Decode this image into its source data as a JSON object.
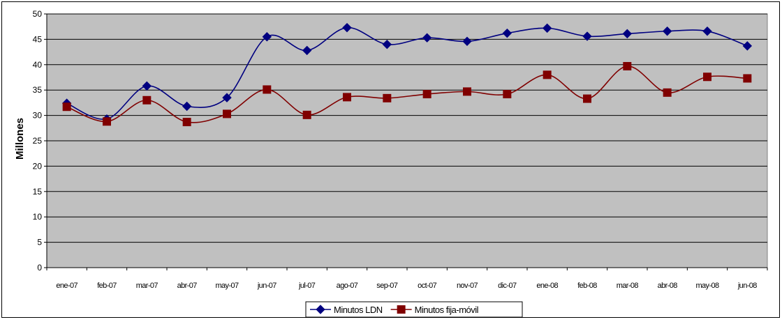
{
  "chart_data": {
    "type": "line",
    "ylabel": "Millones",
    "xlabel": "",
    "title": "",
    "ylim": [
      0,
      50
    ],
    "yticks": [
      "0",
      "5",
      "10",
      "15",
      "20",
      "25",
      "30",
      "35",
      "40",
      "45",
      "50"
    ],
    "categories": [
      "ene-07",
      "feb-07",
      "mar-07",
      "abr-07",
      "may-07",
      "jun-07",
      "jul-07",
      "ago-07",
      "sep-07",
      "oct-07",
      "nov-07",
      "dic-07",
      "ene-08",
      "feb-08",
      "mar-08",
      "abr-08",
      "may-08",
      "jun-08"
    ],
    "grid": true,
    "legend_position": "bottom",
    "plot_background": "#c0c0c0",
    "series": [
      {
        "name": "Minutos LDN",
        "color": "#000080",
        "marker": "diamond",
        "values": [
          32.4,
          29.3,
          35.8,
          31.8,
          33.5,
          45.5,
          42.8,
          47.3,
          44.0,
          45.3,
          44.6,
          46.2,
          47.2,
          45.6,
          46.1,
          46.6,
          46.6,
          43.7
        ]
      },
      {
        "name": "Minutos fija-móvil",
        "color": "#800000",
        "marker": "square",
        "values": [
          31.7,
          28.8,
          33.0,
          28.7,
          30.3,
          35.1,
          30.1,
          33.6,
          33.4,
          34.2,
          34.7,
          34.2,
          38.0,
          33.3,
          39.7,
          34.5,
          37.6,
          37.3
        ]
      }
    ]
  }
}
